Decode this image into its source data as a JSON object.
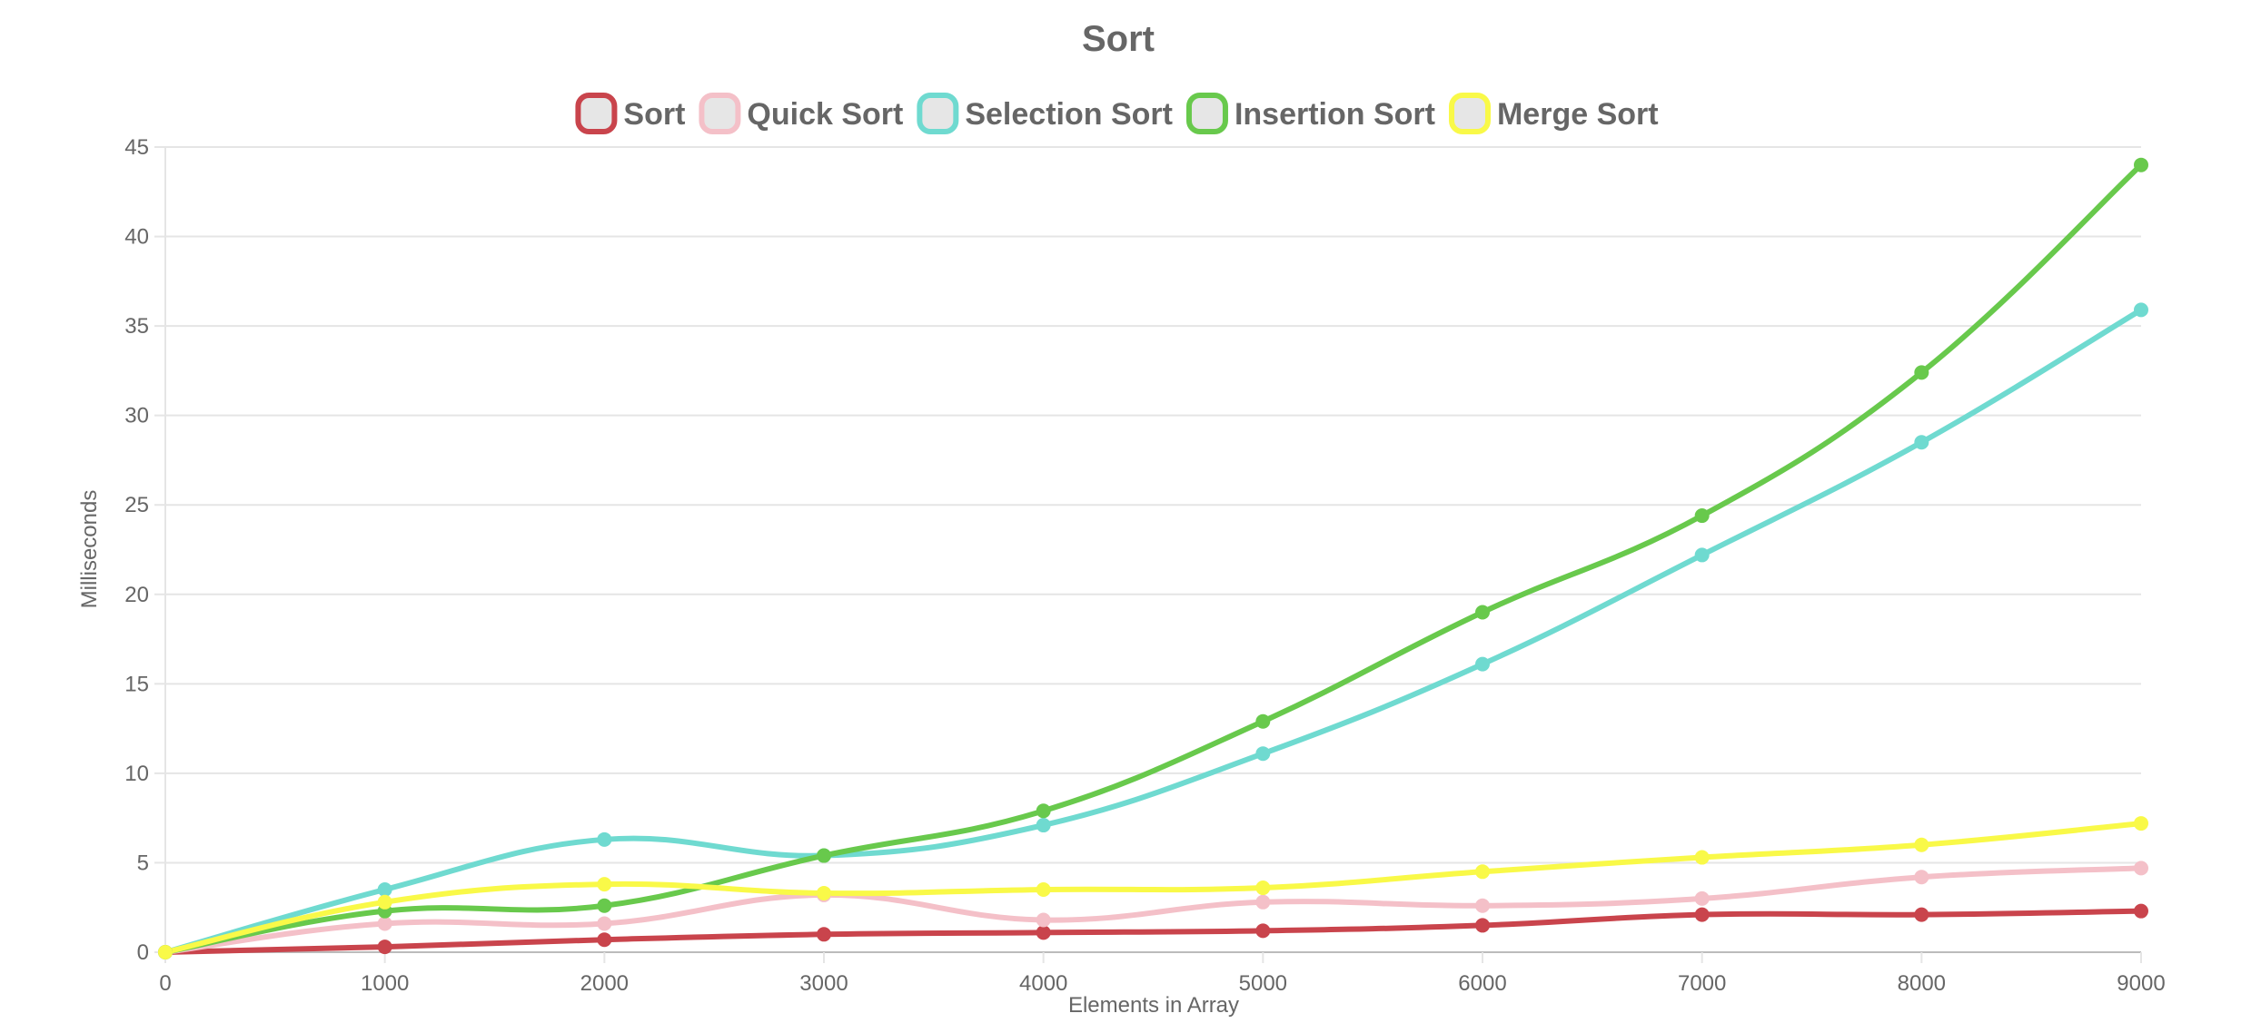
{
  "chart_data": {
    "type": "line",
    "title": "Sort",
    "xlabel": "Elements in Array",
    "ylabel": "Milliseconds",
    "x": [
      0,
      1000,
      2000,
      3000,
      4000,
      5000,
      6000,
      7000,
      8000,
      9000
    ],
    "x_ticks": [
      "0",
      "1000",
      "2000",
      "3000",
      "4000",
      "5000",
      "6000",
      "7000",
      "8000",
      "9000"
    ],
    "y_ticks": [
      "0",
      "5",
      "10",
      "15",
      "20",
      "25",
      "30",
      "35",
      "40",
      "45"
    ],
    "xlim": [
      0,
      9000
    ],
    "ylim": [
      0,
      45
    ],
    "grid": true,
    "legend_position": "top",
    "smooth": true,
    "series": [
      {
        "name": "Sort",
        "color": "#c9444c",
        "values": [
          0,
          0.3,
          0.7,
          1.0,
          1.1,
          1.2,
          1.5,
          2.1,
          2.1,
          2.3
        ]
      },
      {
        "name": "Quick Sort",
        "color": "#f4c0c8",
        "values": [
          0,
          1.6,
          1.6,
          3.2,
          1.8,
          2.8,
          2.6,
          3.0,
          4.2,
          4.7
        ]
      },
      {
        "name": "Selection Sort",
        "color": "#6fdad0",
        "values": [
          0,
          3.5,
          6.3,
          5.4,
          7.1,
          11.1,
          16.1,
          22.2,
          28.5,
          35.9
        ]
      },
      {
        "name": "Insertion Sort",
        "color": "#68c94c",
        "values": [
          0,
          2.3,
          2.6,
          5.4,
          7.9,
          12.9,
          19.0,
          24.4,
          32.4,
          44.0
        ]
      },
      {
        "name": "Merge Sort",
        "color": "#f9f948",
        "values": [
          0,
          2.8,
          3.8,
          3.3,
          3.5,
          3.6,
          4.5,
          5.3,
          6.0,
          7.2
        ]
      }
    ]
  }
}
